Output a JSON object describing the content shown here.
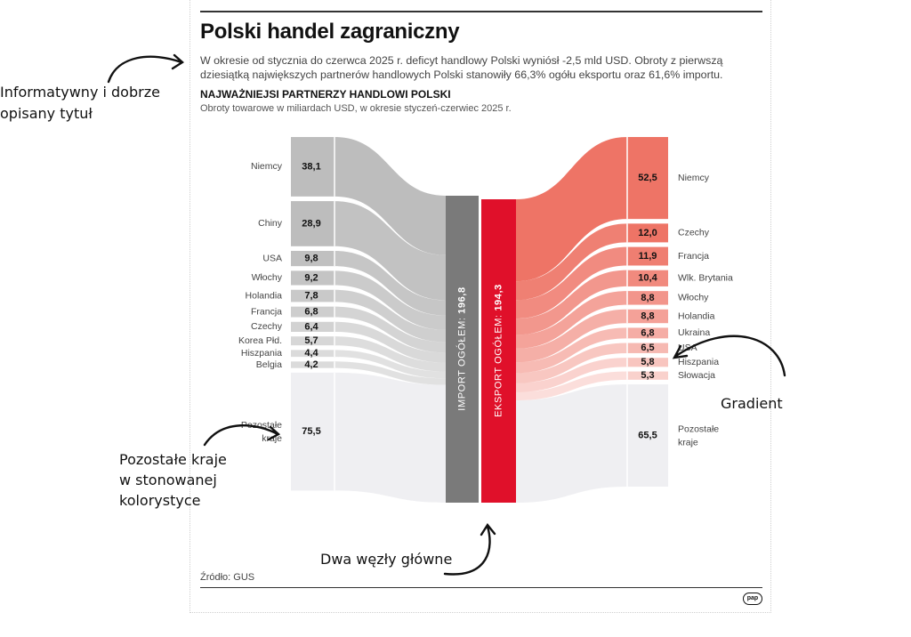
{
  "header": {
    "title": "Polski handel zagraniczny",
    "description": "W okresie od stycznia do czerwca 2025 r. deficyt handlowy Polski wyniósł -2,5 mld USD. Obroty z pierwszą dziesiątką największych partnerów handlowych Polski stanowiły 66,3% ogółu eksportu oraz 61,6% importu.",
    "subtitle": "NAJWAŻNIEJSI PARTNERZY HANDLOWI POLSKI",
    "subtitle2": "Obroty towarowe w miliardach USD, w okresie styczeń-czerwiec 2025 r."
  },
  "footer": {
    "source": "Źródło: GUS",
    "logo": "pap"
  },
  "annotations": {
    "title_note": [
      "Informatywny i dobrze",
      "opisany tytuł"
    ],
    "rest_note": [
      "Pozostałe kraje",
      "w stonowanej",
      "kolorystyce"
    ],
    "nodes_note": "Dwa węzły główne",
    "gradient_note": "Gradient"
  },
  "colors": {
    "import_node": "#7a7a7a",
    "export_node": "#e0102a",
    "import_flow": "#bdbdbd",
    "export_flow": "#ee7466",
    "rest_flow": "#efeff2"
  },
  "chart_data": {
    "type": "sankey",
    "import": {
      "label": "IMPORT OGÓŁEM:",
      "total": "196,8",
      "partners": [
        {
          "name": "Niemcy",
          "value": 38.1,
          "label": "38,1"
        },
        {
          "name": "Chiny",
          "value": 28.9,
          "label": "28,9"
        },
        {
          "name": "USA",
          "value": 9.8,
          "label": "9,8"
        },
        {
          "name": "Włochy",
          "value": 9.2,
          "label": "9,2"
        },
        {
          "name": "Holandia",
          "value": 7.8,
          "label": "7,8"
        },
        {
          "name": "Francja",
          "value": 6.8,
          "label": "6,8"
        },
        {
          "name": "Czechy",
          "value": 6.4,
          "label": "6,4"
        },
        {
          "name": "Korea Płd.",
          "value": 5.7,
          "label": "5,7"
        },
        {
          "name": "Hiszpania",
          "value": 4.4,
          "label": "4,4"
        },
        {
          "name": "Belgia",
          "value": 4.2,
          "label": "4,2"
        }
      ],
      "rest": {
        "name": "Pozostałe kraje",
        "value": 75.5,
        "label": "75,5"
      }
    },
    "export": {
      "label": "EKSPORT OGÓŁEM:",
      "total": "194,3",
      "partners": [
        {
          "name": "Niemcy",
          "value": 52.5,
          "label": "52,5"
        },
        {
          "name": "Czechy",
          "value": 12.0,
          "label": "12,0"
        },
        {
          "name": "Francja",
          "value": 11.9,
          "label": "11,9"
        },
        {
          "name": "Wlk. Brytania",
          "value": 10.4,
          "label": "10,4"
        },
        {
          "name": "Włochy",
          "value": 8.8,
          "label": "8,8"
        },
        {
          "name": "Holandia",
          "value": 8.8,
          "label": "8,8"
        },
        {
          "name": "Ukraina",
          "value": 6.8,
          "label": "6,8"
        },
        {
          "name": "USA",
          "value": 6.5,
          "label": "6,5"
        },
        {
          "name": "Hiszpania",
          "value": 5.8,
          "label": "5,8"
        },
        {
          "name": "Słowacja",
          "value": 5.3,
          "label": "5,3"
        }
      ],
      "rest": {
        "name": "Pozostałe kraje",
        "value": 65.5,
        "label": "65,5"
      }
    }
  }
}
